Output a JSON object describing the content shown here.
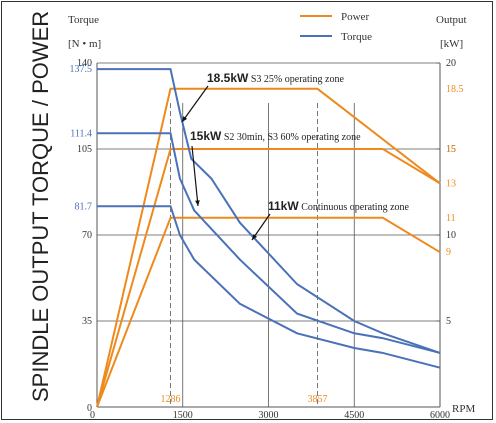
{
  "chart_data": {
    "type": "line",
    "title": "SPINDLE OUTPUT TORQUE / POWER",
    "xlabel": "RPM",
    "x_ticks": [
      1500,
      3000,
      4500,
      6000
    ],
    "xlim": [
      0,
      6000
    ],
    "left_axis": {
      "label_line1": "Torque",
      "label_line2": "[N • m]",
      "ylim": [
        0,
        140
      ],
      "ticks": [
        0,
        35,
        70,
        105,
        140
      ],
      "special_ticks": [
        81.7,
        111.4,
        137.5
      ]
    },
    "right_axis": {
      "label_line1": "Output",
      "label_line2": "[kW]",
      "ylim": [
        0,
        20
      ],
      "ticks": [
        5,
        10,
        15,
        20
      ],
      "special_ticks": [
        9,
        11,
        13,
        15,
        18.5
      ]
    },
    "vertical_markers": [
      1286,
      3857
    ],
    "legend": [
      {
        "label": "Power",
        "color": "#ee8a1d"
      },
      {
        "label": "Torque",
        "color": "#4a72b8"
      }
    ],
    "power_series": [
      {
        "name": "18.5kW",
        "points": [
          [
            0,
            0
          ],
          [
            1286,
            18.5
          ],
          [
            3857,
            18.5
          ],
          [
            6000,
            13
          ]
        ]
      },
      {
        "name": "15kW",
        "points": [
          [
            0,
            0
          ],
          [
            1286,
            15
          ],
          [
            5000,
            15
          ],
          [
            6000,
            13
          ]
        ]
      },
      {
        "name": "11kW",
        "points": [
          [
            0,
            0
          ],
          [
            1286,
            11
          ],
          [
            5000,
            11
          ],
          [
            6000,
            9
          ]
        ]
      }
    ],
    "torque_series": [
      {
        "name": "18.5kW",
        "points": [
          [
            0,
            137.5
          ],
          [
            1286,
            137.5
          ],
          [
            1450,
            120
          ],
          [
            1650,
            101
          ],
          [
            2000,
            93
          ],
          [
            2500,
            75
          ],
          [
            3500,
            50
          ],
          [
            4500,
            35
          ],
          [
            5000,
            30
          ],
          [
            6000,
            22
          ]
        ]
      },
      {
        "name": "15kW",
        "points": [
          [
            0,
            111.4
          ],
          [
            1286,
            111.4
          ],
          [
            1450,
            93
          ],
          [
            1700,
            80
          ],
          [
            2500,
            60
          ],
          [
            3500,
            38
          ],
          [
            4500,
            30
          ],
          [
            5000,
            28
          ],
          [
            6000,
            22
          ]
        ]
      },
      {
        "name": "11kW",
        "points": [
          [
            0,
            81.7
          ],
          [
            1286,
            81.7
          ],
          [
            1450,
            70
          ],
          [
            1700,
            60
          ],
          [
            2500,
            42
          ],
          [
            3500,
            30
          ],
          [
            4500,
            24
          ],
          [
            5000,
            22
          ],
          [
            6000,
            16
          ]
        ]
      }
    ],
    "annotations": [
      {
        "bold": "18.5kW",
        "text": " S3 25% operating zone"
      },
      {
        "bold": "15kW",
        "text": " S2 30min, S3 60% operating zone"
      },
      {
        "bold": "11kW",
        "text": " Continuous operating zone"
      }
    ],
    "colors": {
      "power": "#ee8a1d",
      "torque": "#4a72b8",
      "special_tick": "#4a72b8",
      "power_tick": "#ee8a1d",
      "grid": "#555555"
    }
  }
}
